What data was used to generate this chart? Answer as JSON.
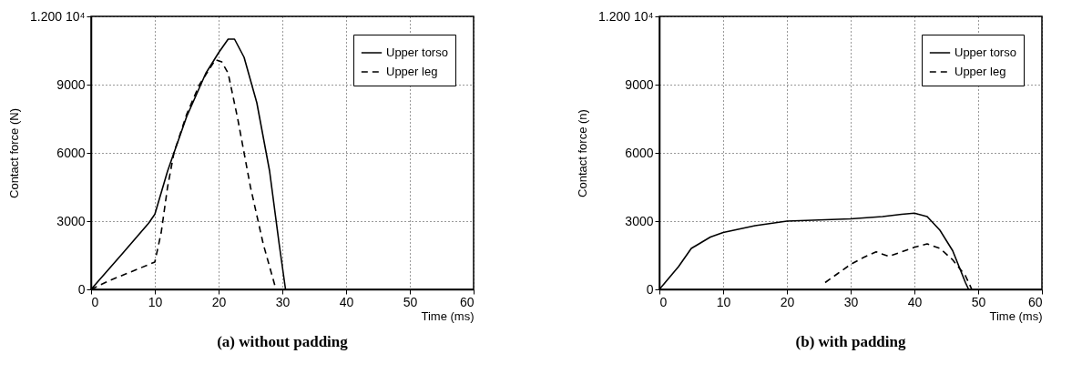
{
  "chart_data": [
    {
      "type": "line",
      "title": "(a) without padding",
      "xlabel": "Time (ms)",
      "ylabel": "Contact force (N)",
      "xlim": [
        0,
        60
      ],
      "ylim": [
        0,
        12000
      ],
      "xticks": [
        0,
        10,
        20,
        30,
        40,
        50,
        60
      ],
      "yticks": [
        0,
        3000,
        6000,
        9000,
        {
          "value": 12000,
          "label": "1.200 10⁴"
        }
      ],
      "grid": true,
      "legend": "top right",
      "series": [
        {
          "name": "Upper torso",
          "color": "#000000",
          "line_style": "solid",
          "x": [
            0,
            5,
            9,
            10,
            12,
            15,
            18,
            20,
            21.5,
            22.5,
            24,
            26,
            28,
            29.5,
            30.5
          ],
          "values": [
            0,
            1600,
            2900,
            3300,
            5200,
            7600,
            9500,
            10400,
            11000,
            11000,
            10200,
            8200,
            5200,
            2000,
            0
          ]
        },
        {
          "name": "Upper leg",
          "color": "#000000",
          "line_style": "dashed",
          "x": [
            0,
            3,
            10,
            11,
            12,
            13,
            15,
            17,
            19.5,
            20.5,
            21.5,
            23,
            25,
            27,
            29
          ],
          "values": [
            0,
            400,
            1200,
            2500,
            4500,
            6000,
            7700,
            9000,
            10100,
            10000,
            9500,
            7500,
            4500,
            2000,
            0
          ]
        }
      ]
    },
    {
      "type": "line",
      "title": "(b) with padding",
      "xlabel": "Time (ms)",
      "ylabel": "Contact force (n)",
      "xlim": [
        0,
        60
      ],
      "ylim": [
        0,
        12000
      ],
      "xticks": [
        0,
        10,
        20,
        30,
        40,
        50,
        60
      ],
      "yticks": [
        0,
        3000,
        6000,
        9000,
        {
          "value": 12000,
          "label": "1.200 10⁴"
        }
      ],
      "grid": true,
      "legend": "top right",
      "series": [
        {
          "name": "Upper torso",
          "color": "#000000",
          "line_style": "solid",
          "x": [
            0,
            3,
            5,
            8,
            10,
            15,
            20,
            25,
            30,
            35,
            38,
            40,
            42,
            44,
            46,
            48,
            48.5
          ],
          "values": [
            0,
            1000,
            1800,
            2300,
            2500,
            2800,
            3000,
            3050,
            3100,
            3200,
            3300,
            3350,
            3200,
            2600,
            1700,
            300,
            0
          ]
        },
        {
          "name": "Upper leg",
          "color": "#000000",
          "line_style": "dashed",
          "x": [
            26,
            28,
            30,
            32,
            34,
            36,
            38,
            40,
            42,
            44,
            46,
            48,
            49
          ],
          "values": [
            300,
            700,
            1100,
            1400,
            1650,
            1450,
            1650,
            1850,
            2000,
            1800,
            1300,
            600,
            0
          ]
        }
      ]
    }
  ]
}
